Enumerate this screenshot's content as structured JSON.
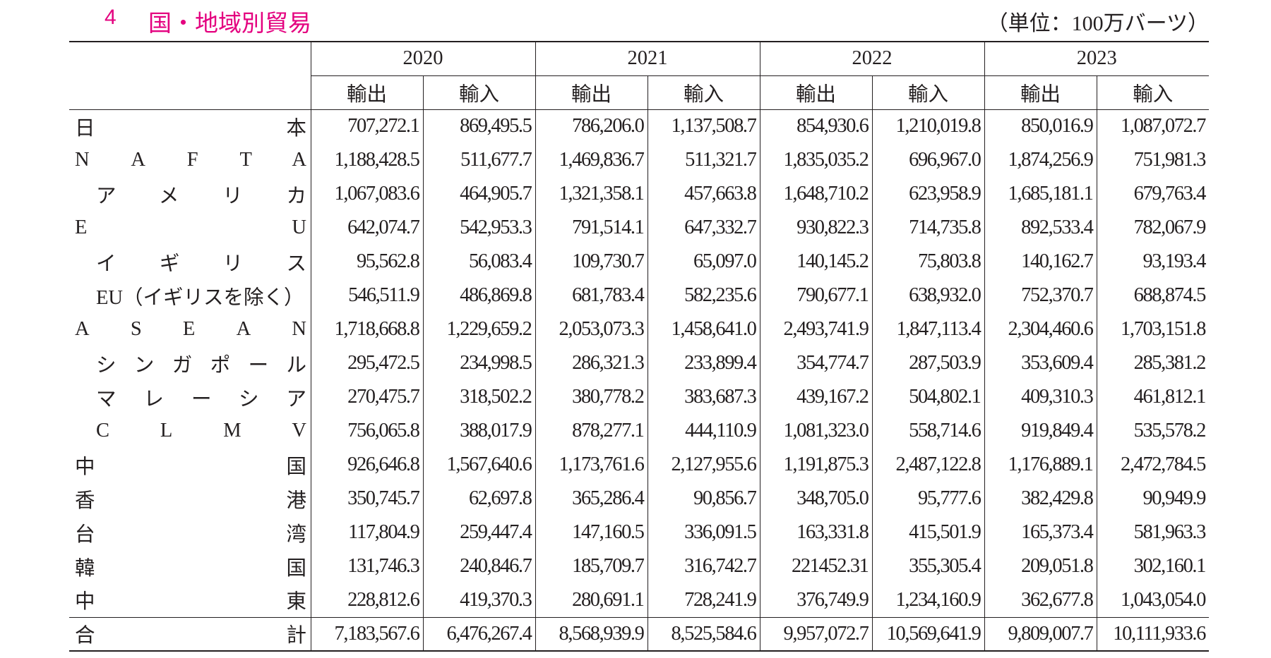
{
  "header": {
    "number": "4",
    "title": "国・地域別貿易",
    "unit": "（単位：100万バーツ）"
  },
  "table": {
    "years": [
      "2020",
      "2021",
      "2022",
      "2023"
    ],
    "subheaders": [
      "輸出",
      "輸入"
    ],
    "rows": [
      {
        "label": "日本",
        "values": [
          "707,272.1",
          "869,495.5",
          "786,206.0",
          "1,137,508.7",
          "854,930.6",
          "1,210,019.8",
          "850,016.9",
          "1,087,072.7"
        ]
      },
      {
        "label": "NAFTA",
        "values": [
          "1,188,428.5",
          "511,677.7",
          "1,469,836.7",
          "511,321.7",
          "1,835,035.2",
          "696,967.0",
          "1,874,256.9",
          "751,981.3"
        ]
      },
      {
        "label": "アメリカ",
        "values": [
          "1,067,083.6",
          "464,905.7",
          "1,321,358.1",
          "457,663.8",
          "1,648,710.2",
          "623,958.9",
          "1,685,181.1",
          "679,763.4"
        ]
      },
      {
        "label": "EU",
        "values": [
          "642,074.7",
          "542,953.3",
          "791,514.1",
          "647,332.7",
          "930,822.3",
          "714,735.8",
          "892,533.4",
          "782,067.9"
        ]
      },
      {
        "label": "イギリス",
        "values": [
          "95,562.8",
          "56,083.4",
          "109,730.7",
          "65,097.0",
          "140,145.2",
          "75,803.8",
          "140,162.7",
          "93,193.4"
        ]
      },
      {
        "label": "EU（イギリスを除く）",
        "values": [
          "546,511.9",
          "486,869.8",
          "681,783.4",
          "582,235.6",
          "790,677.1",
          "638,932.0",
          "752,370.7",
          "688,874.5"
        ]
      },
      {
        "label": "ASEAN",
        "values": [
          "1,718,668.8",
          "1,229,659.2",
          "2,053,073.3",
          "1,458,641.0",
          "2,493,741.9",
          "1,847,113.4",
          "2,304,460.6",
          "1,703,151.8"
        ]
      },
      {
        "label": "シンガポール",
        "values": [
          "295,472.5",
          "234,998.5",
          "286,321.3",
          "233,899.4",
          "354,774.7",
          "287,503.9",
          "353,609.4",
          "285,381.2"
        ]
      },
      {
        "label": "マレーシア",
        "values": [
          "270,475.7",
          "318,502.2",
          "380,778.2",
          "383,687.3",
          "439,167.2",
          "504,802.1",
          "409,310.3",
          "461,812.1"
        ]
      },
      {
        "label": "CLMV",
        "values": [
          "756,065.8",
          "388,017.9",
          "878,277.1",
          "444,110.9",
          "1,081,323.0",
          "558,714.6",
          "919,849.4",
          "535,578.2"
        ]
      },
      {
        "label": "中国",
        "values": [
          "926,646.8",
          "1,567,640.6",
          "1,173,761.6",
          "2,127,955.6",
          "1,191,875.3",
          "2,487,122.8",
          "1,176,889.1",
          "2,472,784.5"
        ]
      },
      {
        "label": "香港",
        "values": [
          "350,745.7",
          "62,697.8",
          "365,286.4",
          "90,856.7",
          "348,705.0",
          "95,777.6",
          "382,429.8",
          "90,949.9"
        ]
      },
      {
        "label": "台湾",
        "values": [
          "117,804.9",
          "259,447.4",
          "147,160.5",
          "336,091.5",
          "163,331.8",
          "415,501.9",
          "165,373.4",
          "581,963.3"
        ]
      },
      {
        "label": "韓国",
        "values": [
          "131,746.3",
          "240,846.7",
          "185,709.7",
          "316,742.7",
          "221452.31",
          "355,305.4",
          "209,051.8",
          "302,160.1"
        ]
      },
      {
        "label": "中東",
        "values": [
          "228,812.6",
          "419,370.3",
          "280,691.1",
          "728,241.9",
          "376,749.9",
          "1,234,160.9",
          "362,677.8",
          "1,043,054.0"
        ]
      }
    ],
    "total": {
      "label": "合計",
      "values": [
        "7,183,567.6",
        "6,476,267.4",
        "8,568,939.9",
        "8,525,584.6",
        "9,957,072.7",
        "10,569,641.9",
        "9,809,007.7",
        "10,111,933.6"
      ]
    }
  }
}
